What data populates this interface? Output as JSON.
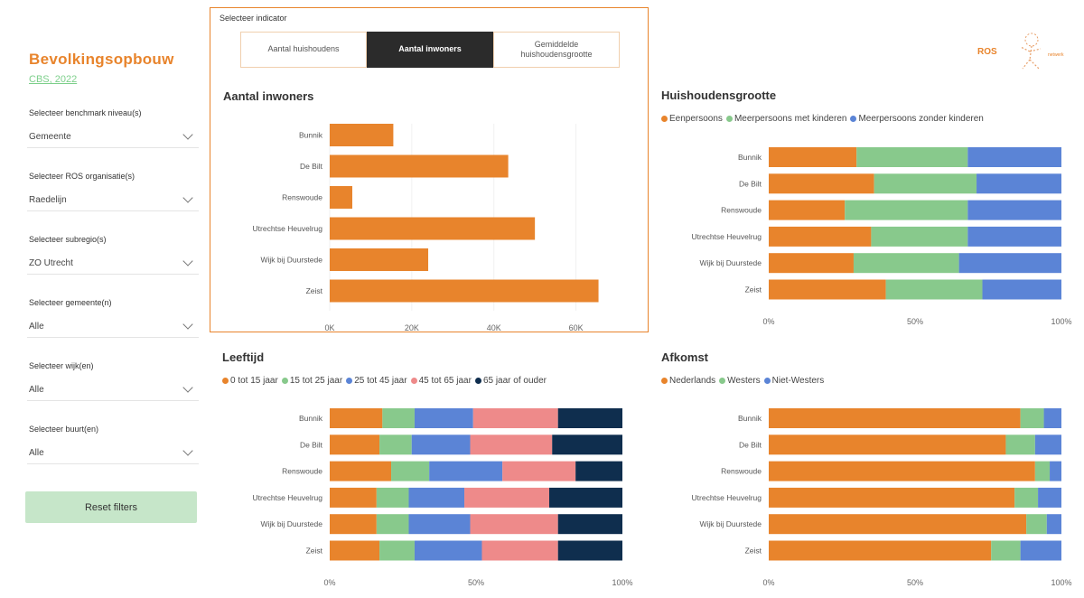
{
  "colors": {
    "orange": "#e8842c",
    "green": "#88c98c",
    "blue": "#5b84d6",
    "pink": "#ee8a8a",
    "navy": "#0f2e4e",
    "accent_green": "#7ccf8a"
  },
  "sidebar": {
    "title": "Bevolkingsopbouw",
    "source": "CBS, 2022",
    "filters": [
      {
        "label": "Selecteer benchmark niveau(s)",
        "value": "Gemeente"
      },
      {
        "label": "Selecteer ROS organisatie(s)",
        "value": "Raedelijn"
      },
      {
        "label": "Selecteer subregio(s)",
        "value": "ZO Utrecht"
      },
      {
        "label": "Selecteer gemeente(n)",
        "value": "Alle"
      },
      {
        "label": "Selecteer wijk(en)",
        "value": "Alle"
      },
      {
        "label": "Selecteer buurt(en)",
        "value": "Alle"
      }
    ],
    "reset_label": "Reset filters"
  },
  "indicator": {
    "label": "Selecteer indicator",
    "options": [
      "Aantal huishoudens",
      "Aantal inwoners",
      "Gemiddelde\nhuishoudensgrootte"
    ],
    "selected_index": 1
  },
  "logo": {
    "text": "ROS",
    "subtext": "netwerk",
    "icon": "ros-figure-logo"
  },
  "chart_data": [
    {
      "type": "bar",
      "title": "Aantal inwoners",
      "categories": [
        "Bunnik",
        "De Bilt",
        "Renswoude",
        "Utrechtse Heuvelrug",
        "Wijk bij Duurstede",
        "Zeist"
      ],
      "values": [
        15500,
        43500,
        5500,
        50000,
        24000,
        65500
      ],
      "xlim": [
        0,
        70000
      ],
      "ticks": [
        "0K",
        "20K",
        "40K",
        "60K"
      ],
      "tick_values": [
        0,
        20000,
        40000,
        60000
      ],
      "xlabel": "",
      "ylabel": ""
    },
    {
      "type": "bar",
      "stacked": "percent",
      "title": "Huishoudensgrootte",
      "categories": [
        "Bunnik",
        "De Bilt",
        "Renswoude",
        "Utrechtse Heuvelrug",
        "Wijk bij Duurstede",
        "Zeist"
      ],
      "series": [
        {
          "name": "Eenpersoons",
          "color": "orange",
          "values": [
            30,
            36,
            26,
            35,
            29,
            40
          ]
        },
        {
          "name": "Meerpersoons met kinderen",
          "color": "green",
          "values": [
            38,
            35,
            42,
            33,
            36,
            33
          ]
        },
        {
          "name": "Meerpersoons zonder kinderen",
          "color": "blue",
          "values": [
            32,
            29,
            32,
            32,
            35,
            27
          ]
        }
      ],
      "ticks": [
        "0%",
        "50%",
        "100%"
      ],
      "legend_position": "top-left"
    },
    {
      "type": "bar",
      "stacked": "percent",
      "title": "Leeftijd",
      "categories": [
        "Bunnik",
        "De Bilt",
        "Renswoude",
        "Utrechtse Heuvelrug",
        "Wijk bij Duurstede",
        "Zeist"
      ],
      "series": [
        {
          "name": "0 tot 15 jaar",
          "color": "orange",
          "values": [
            18,
            17,
            21,
            16,
            16,
            17
          ]
        },
        {
          "name": "15 tot 25 jaar",
          "color": "green",
          "values": [
            11,
            11,
            13,
            11,
            11,
            12
          ]
        },
        {
          "name": "25 tot 45 jaar",
          "color": "blue",
          "values": [
            20,
            20,
            25,
            19,
            21,
            23
          ]
        },
        {
          "name": "45 tot 65 jaar",
          "color": "pink",
          "values": [
            29,
            28,
            25,
            29,
            30,
            26
          ]
        },
        {
          "name": "65 jaar of ouder",
          "color": "navy",
          "values": [
            22,
            24,
            16,
            25,
            22,
            22
          ]
        }
      ],
      "ticks": [
        "0%",
        "50%",
        "100%"
      ],
      "legend_position": "top-left"
    },
    {
      "type": "bar",
      "stacked": "percent",
      "title": "Afkomst",
      "categories": [
        "Bunnik",
        "De Bilt",
        "Renswoude",
        "Utrechtse Heuvelrug",
        "Wijk bij Duurstede",
        "Zeist"
      ],
      "series": [
        {
          "name": "Nederlands",
          "color": "orange",
          "values": [
            86,
            81,
            91,
            84,
            88,
            76
          ]
        },
        {
          "name": "Westers",
          "color": "green",
          "values": [
            8,
            10,
            5,
            8,
            7,
            10
          ]
        },
        {
          "name": "Niet-Westers",
          "color": "blue",
          "values": [
            6,
            9,
            4,
            8,
            5,
            14
          ]
        }
      ],
      "ticks": [
        "0%",
        "50%",
        "100%"
      ],
      "legend_position": "top-left"
    }
  ]
}
